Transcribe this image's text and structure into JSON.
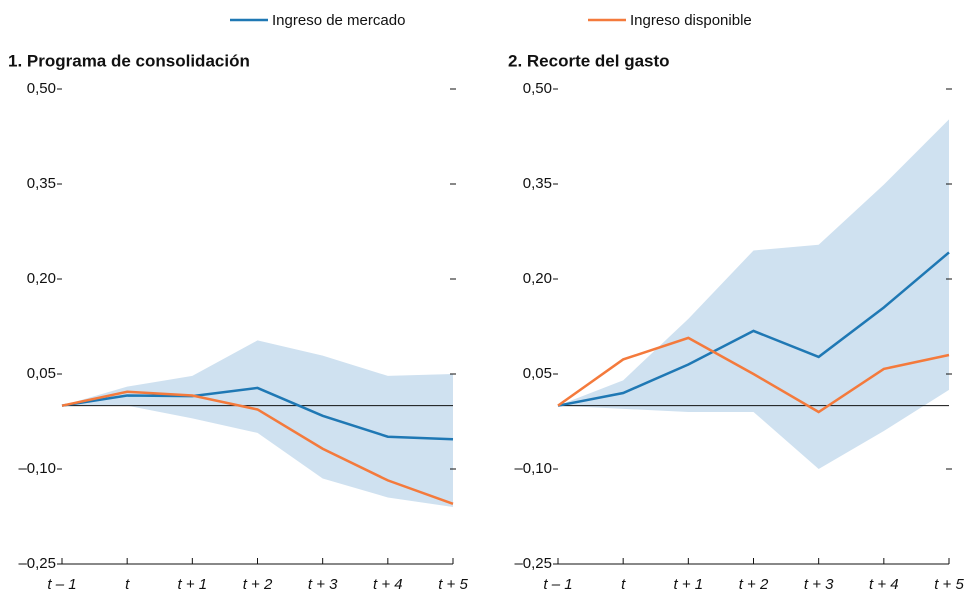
{
  "chart_data": [
    {
      "type": "line",
      "title": "1. Programa de consolidación",
      "categories": [
        "t – 1",
        "t",
        "t + 1",
        "t + 2",
        "t + 3",
        "t + 4",
        "t + 5"
      ],
      "series": [
        {
          "name": "Ingreso de mercado",
          "color": "#1f78b4",
          "values": [
            0,
            0.016,
            0.015,
            0.028,
            -0.016,
            -0.049,
            -0.053
          ]
        },
        {
          "name": "Ingreso disponible",
          "color": "#f47a3c",
          "values": [
            0,
            0.022,
            0.016,
            -0.006,
            -0.068,
            -0.118,
            -0.155
          ]
        }
      ],
      "band": {
        "color": "#cfe1f0",
        "upper": [
          0,
          0.03,
          0.047,
          0.103,
          0.079,
          0.047,
          0.05
        ],
        "lower": [
          0,
          0,
          -0.02,
          -0.043,
          -0.115,
          -0.145,
          -0.16
        ]
      },
      "ylim": [
        -0.25,
        0.5
      ],
      "yticks": [
        {
          "value": -0.25,
          "label": "–0,25"
        },
        {
          "value": -0.1,
          "label": "–0,10"
        },
        {
          "value": 0.05,
          "label": "0,05"
        },
        {
          "value": 0.2,
          "label": "0,20"
        },
        {
          "value": 0.35,
          "label": "0,35"
        },
        {
          "value": 0.5,
          "label": "0,50"
        }
      ]
    },
    {
      "type": "line",
      "title": "2. Recorte del gasto",
      "categories": [
        "t – 1",
        "t",
        "t + 1",
        "t + 2",
        "t + 3",
        "t + 4",
        "t + 5"
      ],
      "series": [
        {
          "color": "#1f78b4",
          "values": [
            0,
            0.02,
            0.065,
            0.118,
            0.077,
            0.155,
            0.242
          ]
        },
        {
          "color": "#f47a3c",
          "values": [
            0,
            0.073,
            0.107,
            0.05,
            -0.01,
            0.058,
            0.08
          ]
        }
      ],
      "band": {
        "color": "#cfe1f0",
        "upper": [
          0,
          0.04,
          0.137,
          0.245,
          0.254,
          0.349,
          0.452
        ],
        "lower": [
          0,
          -0.005,
          -0.01,
          -0.01,
          -0.1,
          -0.04,
          0.025
        ]
      },
      "ylim": [
        -0.25,
        0.5
      ],
      "yticks": [
        {
          "value": -0.25,
          "label": "–0,25"
        },
        {
          "value": -0.1,
          "label": "–0,10"
        },
        {
          "value": 0.05,
          "label": "0,05"
        },
        {
          "value": 0.2,
          "label": "0,20"
        },
        {
          "value": 0.35,
          "label": "0,35"
        },
        {
          "value": 0.5,
          "label": "0,50"
        }
      ]
    }
  ]
}
